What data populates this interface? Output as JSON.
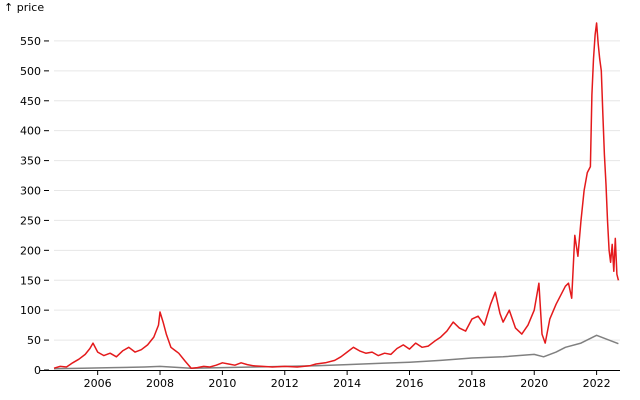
{
  "chart_data": {
    "type": "line",
    "title": "",
    "xlabel": "",
    "ylabel": "↑ price",
    "x_range": [
      2004.6,
      2022.75
    ],
    "ylim": [
      0,
      590
    ],
    "x_ticks": [
      "2006",
      "2008",
      "2010",
      "2012",
      "2014",
      "2016",
      "2018",
      "2020",
      "2022"
    ],
    "y_ticks": [
      "0",
      "50",
      "100",
      "150",
      "200",
      "250",
      "300",
      "350",
      "400",
      "450",
      "500",
      "550"
    ],
    "grid": "horizontal",
    "legend": "none",
    "series": [
      {
        "color": "#e41a1c",
        "points": [
          [
            2004.6,
            3
          ],
          [
            2004.8,
            6
          ],
          [
            2005.0,
            5
          ],
          [
            2005.2,
            12
          ],
          [
            2005.4,
            18
          ],
          [
            2005.6,
            26
          ],
          [
            2005.75,
            36
          ],
          [
            2005.85,
            45
          ],
          [
            2006.0,
            30
          ],
          [
            2006.2,
            24
          ],
          [
            2006.4,
            28
          ],
          [
            2006.6,
            22
          ],
          [
            2006.8,
            32
          ],
          [
            2007.0,
            38
          ],
          [
            2007.2,
            30
          ],
          [
            2007.4,
            34
          ],
          [
            2007.6,
            42
          ],
          [
            2007.8,
            55
          ],
          [
            2007.95,
            75
          ],
          [
            2008.0,
            97
          ],
          [
            2008.1,
            80
          ],
          [
            2008.2,
            60
          ],
          [
            2008.35,
            38
          ],
          [
            2008.5,
            32
          ],
          [
            2008.6,
            28
          ],
          [
            2008.8,
            15
          ],
          [
            2009.0,
            3
          ],
          [
            2009.2,
            4
          ],
          [
            2009.4,
            6
          ],
          [
            2009.6,
            5
          ],
          [
            2009.8,
            8
          ],
          [
            2010.0,
            12
          ],
          [
            2010.2,
            10
          ],
          [
            2010.4,
            8
          ],
          [
            2010.6,
            12
          ],
          [
            2010.8,
            9
          ],
          [
            2011.0,
            7
          ],
          [
            2011.3,
            6
          ],
          [
            2011.6,
            5
          ],
          [
            2012.0,
            6
          ],
          [
            2012.4,
            5
          ],
          [
            2012.8,
            7
          ],
          [
            2013.0,
            10
          ],
          [
            2013.3,
            12
          ],
          [
            2013.6,
            16
          ],
          [
            2013.8,
            22
          ],
          [
            2014.0,
            30
          ],
          [
            2014.2,
            38
          ],
          [
            2014.4,
            32
          ],
          [
            2014.6,
            28
          ],
          [
            2014.8,
            30
          ],
          [
            2015.0,
            24
          ],
          [
            2015.2,
            28
          ],
          [
            2015.4,
            26
          ],
          [
            2015.6,
            36
          ],
          [
            2015.8,
            42
          ],
          [
            2016.0,
            35
          ],
          [
            2016.2,
            45
          ],
          [
            2016.4,
            38
          ],
          [
            2016.6,
            40
          ],
          [
            2016.8,
            48
          ],
          [
            2017.0,
            55
          ],
          [
            2017.2,
            65
          ],
          [
            2017.4,
            80
          ],
          [
            2017.6,
            70
          ],
          [
            2017.8,
            65
          ],
          [
            2018.0,
            85
          ],
          [
            2018.2,
            90
          ],
          [
            2018.4,
            75
          ],
          [
            2018.6,
            110
          ],
          [
            2018.75,
            130
          ],
          [
            2018.9,
            95
          ],
          [
            2019.0,
            80
          ],
          [
            2019.2,
            100
          ],
          [
            2019.4,
            70
          ],
          [
            2019.6,
            60
          ],
          [
            2019.8,
            75
          ],
          [
            2020.0,
            100
          ],
          [
            2020.15,
            145
          ],
          [
            2020.25,
            60
          ],
          [
            2020.35,
            45
          ],
          [
            2020.5,
            85
          ],
          [
            2020.7,
            110
          ],
          [
            2020.9,
            130
          ],
          [
            2021.0,
            140
          ],
          [
            2021.1,
            145
          ],
          [
            2021.2,
            120
          ],
          [
            2021.3,
            225
          ],
          [
            2021.4,
            190
          ],
          [
            2021.5,
            250
          ],
          [
            2021.6,
            300
          ],
          [
            2021.7,
            330
          ],
          [
            2021.8,
            340
          ],
          [
            2021.85,
            460
          ],
          [
            2021.9,
            520
          ],
          [
            2021.95,
            560
          ],
          [
            2022.0,
            580
          ],
          [
            2022.05,
            545
          ],
          [
            2022.1,
            520
          ],
          [
            2022.15,
            500
          ],
          [
            2022.2,
            430
          ],
          [
            2022.25,
            360
          ],
          [
            2022.3,
            310
          ],
          [
            2022.35,
            250
          ],
          [
            2022.4,
            200
          ],
          [
            2022.45,
            180
          ],
          [
            2022.5,
            210
          ],
          [
            2022.55,
            165
          ],
          [
            2022.6,
            220
          ],
          [
            2022.65,
            160
          ],
          [
            2022.7,
            150
          ]
        ]
      },
      {
        "color": "#808080",
        "points": [
          [
            2004.6,
            2
          ],
          [
            2005.5,
            3
          ],
          [
            2006.5,
            4
          ],
          [
            2007.5,
            5
          ],
          [
            2008.0,
            6
          ],
          [
            2009.0,
            3
          ],
          [
            2010.0,
            4
          ],
          [
            2011.0,
            5
          ],
          [
            2012.0,
            6
          ],
          [
            2013.0,
            7
          ],
          [
            2014.0,
            9
          ],
          [
            2015.0,
            11
          ],
          [
            2016.0,
            13
          ],
          [
            2017.0,
            16
          ],
          [
            2018.0,
            20
          ],
          [
            2019.0,
            22
          ],
          [
            2020.0,
            26
          ],
          [
            2020.3,
            22
          ],
          [
            2020.7,
            30
          ],
          [
            2021.0,
            38
          ],
          [
            2021.5,
            45
          ],
          [
            2022.0,
            58
          ],
          [
            2022.3,
            52
          ],
          [
            2022.5,
            48
          ],
          [
            2022.7,
            44
          ]
        ]
      }
    ]
  }
}
